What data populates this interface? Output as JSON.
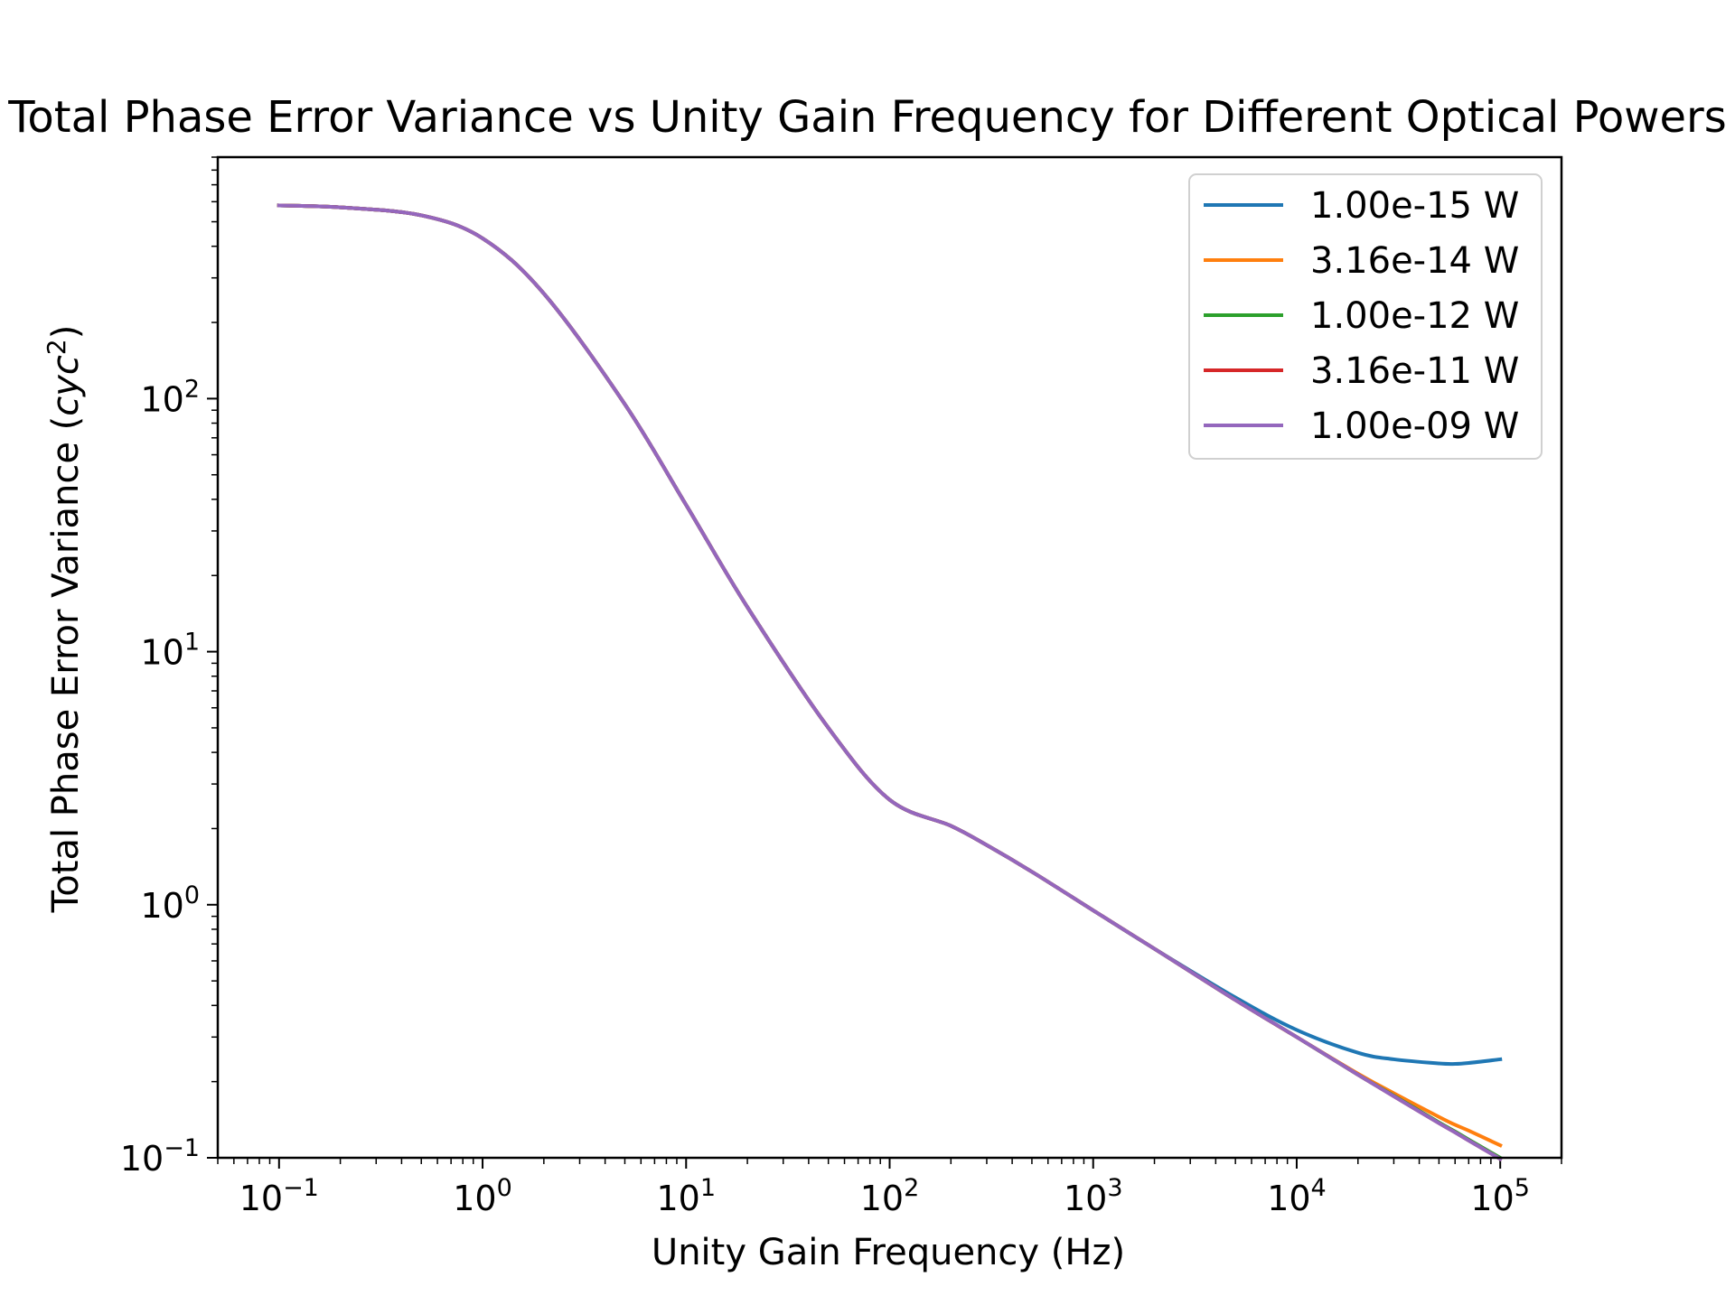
{
  "chart_data": {
    "type": "line",
    "title": "Total Phase Error Variance vs Unity Gain Frequency for Different Optical Powers",
    "xlabel": "Unity Gain Frequency (Hz)",
    "ylabel_main": "Total Phase Error Variance (",
    "ylabel_math": "cyc",
    "ylabel_exp": "2",
    "ylabel_close": ")",
    "x_scale": "log",
    "y_scale": "log",
    "xlim": [
      0.05,
      200000
    ],
    "ylim": [
      0.1,
      900
    ],
    "x_ticks": [
      {
        "base": "10",
        "exp": "−1",
        "value": 0.1
      },
      {
        "base": "10",
        "exp": "0",
        "value": 1
      },
      {
        "base": "10",
        "exp": "1",
        "value": 10
      },
      {
        "base": "10",
        "exp": "2",
        "value": 100
      },
      {
        "base": "10",
        "exp": "3",
        "value": 1000
      },
      {
        "base": "10",
        "exp": "4",
        "value": 10000
      },
      {
        "base": "10",
        "exp": "5",
        "value": 100000
      }
    ],
    "y_ticks": [
      {
        "base": "10",
        "exp": "−1",
        "value": 0.1
      },
      {
        "base": "10",
        "exp": "0",
        "value": 1
      },
      {
        "base": "10",
        "exp": "1",
        "value": 10
      },
      {
        "base": "10",
        "exp": "2",
        "value": 100
      }
    ],
    "grid": false,
    "legend_position": "top-right",
    "x": [
      0.1,
      0.2,
      0.5,
      1,
      2,
      5,
      10,
      20,
      50,
      100,
      200,
      300,
      500,
      1000,
      2000,
      5000,
      10000,
      20000,
      30000,
      50000,
      60000,
      70000,
      100000
    ],
    "series": [
      {
        "name": "1.00e-15 W",
        "color": "#1f77b4",
        "values": [
          580,
          570,
          530,
          430,
          260,
          95,
          38,
          15,
          5.0,
          2.6,
          2.05,
          1.72,
          1.35,
          0.95,
          0.67,
          0.43,
          0.32,
          0.26,
          0.245,
          0.236,
          0.235,
          0.237,
          0.245
        ]
      },
      {
        "name": "3.16e-14 W",
        "color": "#ff7f0e",
        "values": [
          580,
          570,
          530,
          430,
          260,
          95,
          38,
          15,
          5.0,
          2.6,
          2.05,
          1.72,
          1.35,
          0.95,
          0.67,
          0.42,
          0.3,
          0.215,
          0.18,
          0.145,
          0.135,
          0.128,
          0.112
        ]
      },
      {
        "name": "1.00e-12 W",
        "color": "#2ca02c",
        "values": [
          580,
          570,
          530,
          430,
          260,
          95,
          38,
          15,
          5.0,
          2.6,
          2.05,
          1.72,
          1.35,
          0.95,
          0.67,
          0.42,
          0.3,
          0.213,
          0.176,
          0.138,
          0.127,
          0.118,
          0.1
        ]
      },
      {
        "name": "3.16e-11 W",
        "color": "#d62728",
        "values": [
          580,
          570,
          530,
          430,
          260,
          95,
          38,
          15,
          5.0,
          2.6,
          2.05,
          1.72,
          1.35,
          0.95,
          0.67,
          0.42,
          0.3,
          0.213,
          0.175,
          0.137,
          0.126,
          0.117,
          0.099
        ]
      },
      {
        "name": "1.00e-09 W",
        "color": "#9467bd",
        "values": [
          580,
          570,
          530,
          430,
          260,
          95,
          38,
          15,
          5.0,
          2.6,
          2.05,
          1.72,
          1.35,
          0.95,
          0.67,
          0.42,
          0.3,
          0.213,
          0.175,
          0.137,
          0.126,
          0.117,
          0.099
        ]
      }
    ]
  }
}
